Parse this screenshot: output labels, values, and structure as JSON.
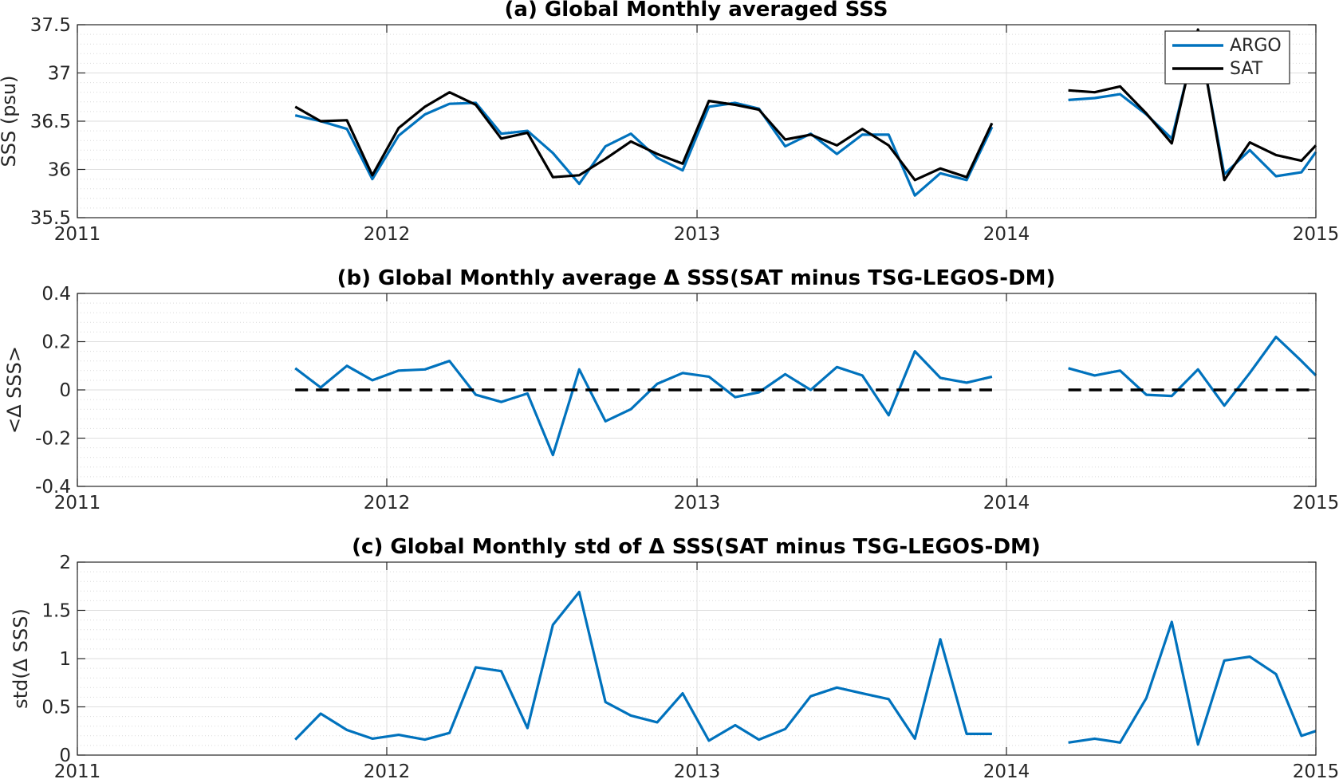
{
  "chart_data": [
    {
      "type": "line",
      "title": "(a) Global Monthly averaged SSS",
      "xlabel": "",
      "ylabel": "SSS (psu)",
      "xlim": [
        "2011-01-01",
        "2015-01-01"
      ],
      "ylim": [
        35.5,
        37.5
      ],
      "yticks": [
        35.5,
        36,
        36.5,
        37,
        37.5
      ],
      "ytick_labels": [
        "35.5",
        "36",
        "36.5",
        "37",
        "37.5"
      ],
      "xtick_labels": [
        "2011",
        "2012",
        "2013",
        "2014",
        "2015"
      ],
      "grid": true,
      "legend": "top-right",
      "series": [
        {
          "name": "ARGO",
          "color": "#0072BD",
          "segments": [
            {
              "x": [
                "2011-09-15",
                "2011-10-15",
                "2011-11-15",
                "2011-12-15",
                "2012-01-15",
                "2012-02-15",
                "2012-03-15",
                "2012-04-15",
                "2012-05-15",
                "2012-06-15",
                "2012-07-15",
                "2012-08-15",
                "2012-09-15",
                "2012-10-15",
                "2012-11-15",
                "2012-12-15",
                "2013-01-15",
                "2013-02-15",
                "2013-03-15",
                "2013-04-15",
                "2013-05-15",
                "2013-06-15",
                "2013-07-15",
                "2013-08-15",
                "2013-09-15",
                "2013-10-15",
                "2013-11-15",
                "2013-12-15"
              ],
              "y": [
                36.56,
                36.5,
                36.42,
                35.9,
                36.35,
                36.57,
                36.68,
                36.69,
                36.37,
                36.4,
                36.17,
                35.85,
                36.24,
                36.37,
                36.12,
                35.99,
                36.65,
                36.69,
                36.63,
                36.24,
                36.37,
                36.16,
                36.36,
                36.36,
                35.73,
                35.96,
                35.89,
                36.44
              ]
            },
            {
              "x": [
                "2014-03-15",
                "2014-04-15",
                "2014-05-15",
                "2014-06-15",
                "2014-07-15",
                "2014-08-15",
                "2014-09-15",
                "2014-10-15",
                "2014-11-15",
                "2014-12-15",
                "2015-01-01"
              ],
              "y": [
                36.72,
                36.74,
                36.78,
                36.57,
                36.32,
                37.42,
                35.95,
                36.2,
                35.93,
                35.97,
                36.18
              ]
            }
          ]
        },
        {
          "name": "SAT",
          "color": "#000000",
          "segments": [
            {
              "x": [
                "2011-09-15",
                "2011-10-15",
                "2011-11-15",
                "2011-12-15",
                "2012-01-15",
                "2012-02-15",
                "2012-03-15",
                "2012-04-15",
                "2012-05-15",
                "2012-06-15",
                "2012-07-15",
                "2012-08-15",
                "2012-09-15",
                "2012-10-15",
                "2012-11-15",
                "2012-12-15",
                "2013-01-15",
                "2013-02-15",
                "2013-03-15",
                "2013-04-15",
                "2013-05-15",
                "2013-06-15",
                "2013-07-15",
                "2013-08-15",
                "2013-09-15",
                "2013-10-15",
                "2013-11-15",
                "2013-12-15"
              ],
              "y": [
                36.65,
                36.5,
                36.51,
                35.94,
                36.43,
                36.65,
                36.8,
                36.67,
                36.32,
                36.38,
                35.92,
                35.94,
                36.11,
                36.29,
                36.16,
                36.06,
                36.71,
                36.67,
                36.62,
                36.31,
                36.36,
                36.25,
                36.42,
                36.25,
                35.89,
                36.01,
                35.92,
                36.48
              ]
            },
            {
              "x": [
                "2014-03-15",
                "2014-04-15",
                "2014-05-15",
                "2014-06-15",
                "2014-07-15",
                "2014-08-15",
                "2014-09-15",
                "2014-10-15",
                "2014-11-15",
                "2014-12-15",
                "2015-01-01"
              ],
              "y": [
                36.82,
                36.8,
                36.86,
                36.58,
                36.27,
                37.45,
                35.89,
                36.28,
                36.15,
                36.09,
                36.25
              ]
            }
          ]
        }
      ]
    },
    {
      "type": "line",
      "title": "(b) Global Monthly average Δ SSS(SAT minus TSG-LEGOS-DM)",
      "xlabel": "",
      "ylabel": "<Δ SSS>",
      "xlim": [
        "2011-01-01",
        "2015-01-01"
      ],
      "ylim": [
        -0.4,
        0.4
      ],
      "yticks": [
        -0.4,
        -0.2,
        0,
        0.2,
        0.4
      ],
      "ytick_labels": [
        "-0.4",
        "-0.2",
        "0",
        "0.2",
        "0.4"
      ],
      "xtick_labels": [
        "2011",
        "2012",
        "2013",
        "2014",
        "2015"
      ],
      "grid": true,
      "series": [
        {
          "color": "#0072BD",
          "segments": [
            {
              "x": [
                "2011-09-15",
                "2011-10-15",
                "2011-11-15",
                "2011-12-15",
                "2012-01-15",
                "2012-02-15",
                "2012-03-15",
                "2012-04-15",
                "2012-05-15",
                "2012-06-15",
                "2012-07-15",
                "2012-08-15",
                "2012-09-15",
                "2012-10-15",
                "2012-11-15",
                "2012-12-15",
                "2013-01-15",
                "2013-02-15",
                "2013-03-15",
                "2013-04-15",
                "2013-05-15",
                "2013-06-15",
                "2013-07-15",
                "2013-08-15",
                "2013-09-15",
                "2013-10-15",
                "2013-11-15",
                "2013-12-15"
              ],
              "y": [
                0.09,
                0.01,
                0.1,
                0.04,
                0.08,
                0.085,
                0.12,
                -0.02,
                -0.05,
                -0.015,
                -0.27,
                0.085,
                -0.13,
                -0.08,
                0.025,
                0.07,
                0.055,
                -0.03,
                -0.01,
                0.065,
                0.0,
                0.095,
                0.06,
                -0.105,
                0.16,
                0.05,
                0.03,
                0.055
              ]
            },
            {
              "x": [
                "2014-03-15",
                "2014-04-15",
                "2014-05-15",
                "2014-06-15",
                "2014-07-15",
                "2014-08-15",
                "2014-09-15",
                "2014-10-15",
                "2014-11-15",
                "2014-12-15",
                "2015-01-01"
              ],
              "y": [
                0.09,
                0.06,
                0.08,
                -0.02,
                -0.025,
                0.085,
                -0.065,
                0.07,
                0.22,
                0.12,
                0.06
              ]
            }
          ]
        },
        {
          "color": "#000000",
          "style": "dashed",
          "segments": [
            {
              "x": [
                "2011-09-15",
                "2013-12-15"
              ],
              "y": [
                0,
                0
              ]
            },
            {
              "x": [
                "2014-03-15",
                "2015-01-01"
              ],
              "y": [
                0,
                0
              ]
            }
          ]
        }
      ]
    },
    {
      "type": "line",
      "title": "(c) Global Monthly std of Δ SSS(SAT minus TSG-LEGOS-DM)",
      "xlabel": "",
      "ylabel": "std(Δ SSS)",
      "xlim": [
        "2011-01-01",
        "2015-01-01"
      ],
      "ylim": [
        0,
        2
      ],
      "yticks": [
        0,
        0.5,
        1,
        1.5,
        2
      ],
      "ytick_labels": [
        "0",
        "0.5",
        "1",
        "1.5",
        "2"
      ],
      "xtick_labels": [
        "2011",
        "2012",
        "2013",
        "2014",
        "2015"
      ],
      "grid": true,
      "series": [
        {
          "color": "#0072BD",
          "segments": [
            {
              "x": [
                "2011-09-15",
                "2011-10-15",
                "2011-11-15",
                "2011-12-15",
                "2012-01-15",
                "2012-02-15",
                "2012-03-15",
                "2012-04-15",
                "2012-05-15",
                "2012-06-15",
                "2012-07-15",
                "2012-08-15",
                "2012-09-15",
                "2012-10-15",
                "2012-11-15",
                "2012-12-15",
                "2013-01-15",
                "2013-02-15",
                "2013-03-15",
                "2013-04-15",
                "2013-05-15",
                "2013-06-15",
                "2013-07-15",
                "2013-08-15",
                "2013-09-15",
                "2013-10-15",
                "2013-11-15",
                "2013-12-15"
              ],
              "y": [
                0.16,
                0.43,
                0.26,
                0.17,
                0.21,
                0.16,
                0.23,
                0.91,
                0.87,
                0.28,
                1.35,
                1.69,
                0.55,
                0.41,
                0.34,
                0.64,
                0.15,
                0.31,
                0.16,
                0.27,
                0.61,
                0.7,
                0.64,
                0.58,
                0.17,
                1.2,
                0.22,
                0.22
              ]
            },
            {
              "x": [
                "2014-03-15",
                "2014-04-15",
                "2014-05-15",
                "2014-06-15",
                "2014-07-15",
                "2014-08-15",
                "2014-09-15",
                "2014-10-15",
                "2014-11-15",
                "2014-12-15",
                "2015-01-01"
              ],
              "y": [
                0.13,
                0.17,
                0.13,
                0.59,
                1.38,
                0.11,
                0.98,
                1.02,
                0.84,
                0.2,
                0.25
              ]
            }
          ]
        }
      ]
    }
  ]
}
